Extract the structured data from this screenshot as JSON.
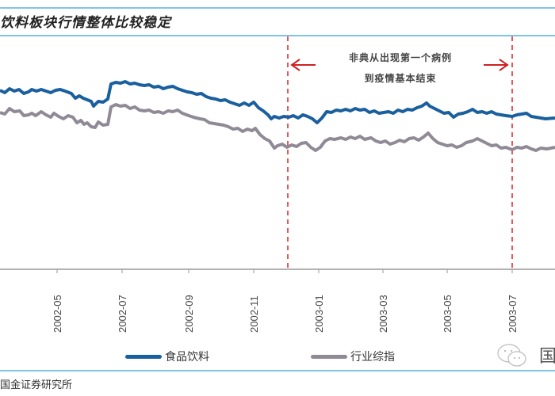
{
  "header": {
    "title": "饮料板块行情整体比较稳定"
  },
  "footer": {
    "source": "国金证券研究所",
    "watermark": "国"
  },
  "legend": {
    "items": [
      {
        "label": "食品饮料",
        "color": "#1a5f9e"
      },
      {
        "label": "行业综指",
        "color": "#8f8a95"
      }
    ]
  },
  "annotation": {
    "line1": "非典从出现第一个病例",
    "line2": "到疫情基本结束",
    "start_x_label": "2002-12 (first case)",
    "end_x_label": "2003-07 (epidemic ended)",
    "color": "#e02020"
  },
  "chart_data": {
    "type": "line",
    "title": "饮料板块行情整体比较稳定",
    "xlabel": "",
    "ylabel": "",
    "x_tick_labels": [
      "2002-05",
      "2002-07",
      "2002-09",
      "2002-11",
      "2003-01",
      "2003-03",
      "2003-05",
      "2003-07"
    ],
    "x": [
      "2002-04",
      "2002-05",
      "2002-06",
      "2002-06-20",
      "2002-06-25",
      "2002-07",
      "2002-08",
      "2002-09",
      "2002-10",
      "2002-11",
      "2002-12",
      "2003-01",
      "2003-02",
      "2003-03",
      "2003-04",
      "2003-04-20",
      "2003-05",
      "2003-06",
      "2003-07",
      "2003-08"
    ],
    "series": [
      {
        "name": "食品饮料",
        "color": "#1a5f9e",
        "values": [
          112,
          115,
          111,
          108,
          120,
          120,
          119,
          115,
          110,
          104,
          98,
          96,
          101,
          103,
          101,
          104,
          97,
          100,
          97,
          96
        ]
      },
      {
        "name": "行业综指",
        "color": "#8f8a95",
        "values": [
          93,
          95,
          90,
          88,
          102,
          101,
          100,
          98,
          92,
          85,
          76,
          77,
          81,
          83,
          80,
          83,
          76,
          80,
          75,
          76
        ]
      }
    ],
    "vertical_markers": [
      {
        "x": "2002-12",
        "style": "dashed",
        "color": "#e02020"
      },
      {
        "x": "2003-07",
        "style": "dashed",
        "color": "#e02020"
      }
    ],
    "grid": false,
    "legend_position": "bottom"
  }
}
